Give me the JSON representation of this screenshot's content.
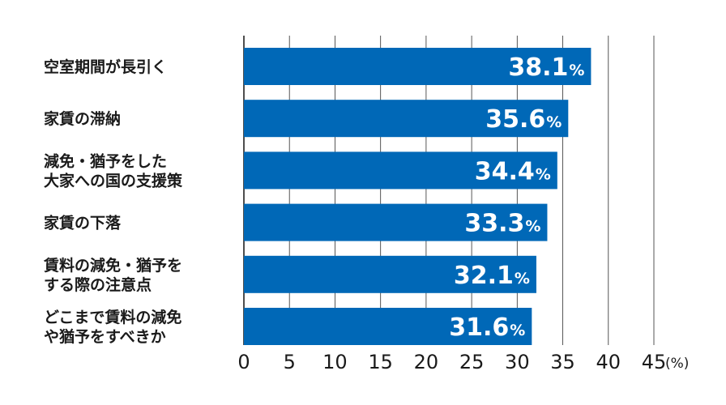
{
  "chart_data": {
    "type": "bar",
    "orientation": "horizontal",
    "categories": [
      [
        "空室期間が長引く"
      ],
      [
        "家賃の滞納"
      ],
      [
        "減免・猶予をした",
        "大家への国の支援策"
      ],
      [
        "家賃の下落"
      ],
      [
        "賃料の減免・猶予を",
        "する際の注意点"
      ],
      [
        "どこまで賃料の減免",
        "や猶予をすべきか"
      ]
    ],
    "values": [
      38.1,
      35.6,
      34.4,
      33.3,
      32.1,
      31.6
    ],
    "value_unit": "%",
    "xlim": [
      0,
      45
    ],
    "xticks": [
      0,
      5,
      10,
      15,
      20,
      25,
      30,
      35,
      40,
      45
    ],
    "axis_unit_label": "(%)",
    "grid": "vertical",
    "bar_color": "#0068b7"
  }
}
